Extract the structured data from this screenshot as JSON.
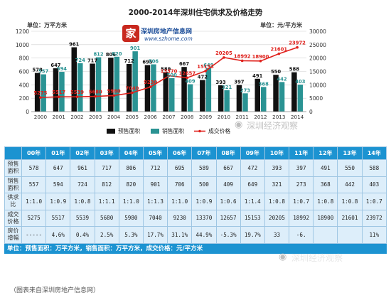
{
  "chart_data": {
    "type": "bar",
    "title": "2000-2014年深圳住宅供求及价格走势",
    "left_axis_label": "单位：万平方米",
    "right_axis_label": "单位：元/平方米",
    "categories": [
      "2000",
      "2001",
      "2002",
      "2003",
      "2004",
      "2005",
      "2006",
      "2007",
      "2008",
      "2009",
      "2010",
      "2011",
      "2012",
      "2013",
      "2014"
    ],
    "ylim_left": [
      0,
      1200
    ],
    "yticks_left": [
      "0",
      "200",
      "400",
      "600",
      "800",
      "1000",
      "1200"
    ],
    "ylim_right": [
      0,
      30000
    ],
    "yticks_right": [
      "0",
      "5000",
      "10000",
      "15000",
      "20000",
      "25000",
      "30000"
    ],
    "series": [
      {
        "name": "预售面积",
        "type": "bar",
        "axis": "left",
        "color": "#111111",
        "values": [
          578,
          647,
          961,
          717,
          806,
          712,
          695,
          589,
          667,
          472,
          393,
          397,
          491,
          550,
          588
        ]
      },
      {
        "name": "销售面积",
        "type": "bar",
        "axis": "left",
        "color": "#2a9393",
        "values": [
          557,
          594,
          724,
          812,
          820,
          901,
          706,
          500,
          409,
          649,
          321,
          273,
          368,
          442,
          403
        ]
      },
      {
        "name": "成交价格",
        "type": "line",
        "axis": "right",
        "color": "#e0201b",
        "values": [
          5275,
          5517,
          5539,
          5680,
          5980,
          7040,
          9230,
          13370,
          12657,
          15153,
          20205,
          18992,
          18900,
          21601,
          23972
        ]
      }
    ],
    "bar_label_sets": [
      [
        "578",
        "647",
        "961",
        "717",
        "806",
        "712",
        "695",
        "589",
        "667",
        "472",
        "393",
        "397",
        "491",
        "550",
        "588"
      ],
      [
        "557",
        "594",
        "724",
        "812",
        "820",
        "901",
        "706",
        "500",
        "409",
        "649",
        "321",
        "273",
        "368",
        "442",
        "403"
      ]
    ],
    "line_labels": [
      "5275",
      "5517",
      "5539",
      "5680",
      "5980",
      "7040",
      "9230",
      "13370",
      "12657",
      "15153",
      "20205",
      "18992",
      "18900",
      "21601",
      "23972"
    ],
    "grid": true,
    "legend_position": "bottom-center"
  },
  "logo": {
    "mark": "家",
    "name": "深圳房地产信息网",
    "url": "www.szhome.com"
  },
  "watermark": {
    "text": "深圳经济观察",
    "icon": "wechat-icon"
  },
  "table": {
    "header": [
      "",
      "00年",
      "01年",
      "02年",
      "03年",
      "04年",
      "05年",
      "06年",
      "07年",
      "08年",
      "09年",
      "10年",
      "11年",
      "12年",
      "13年",
      "14年"
    ],
    "rows": [
      {
        "label": "预售面积",
        "cells": [
          "578",
          "647",
          "961",
          "717",
          "806",
          "712",
          "695",
          "589",
          "667",
          "472",
          "393",
          "397",
          "491",
          "550",
          "588"
        ]
      },
      {
        "label": "销售面积",
        "cells": [
          "557",
          "594",
          "724",
          "812",
          "820",
          "901",
          "706",
          "500",
          "409",
          "649",
          "321",
          "273",
          "368",
          "442",
          "403"
        ]
      },
      {
        "label": "供求比",
        "cells": [
          "1:1.0",
          "1:0.9",
          "1:0.8",
          "1:1.1",
          "1:1.0",
          "1:1.3",
          "1:1.0",
          "1:0.9",
          "1:0.6",
          "1:1.4",
          "1:0.8",
          "1:0.7",
          "1:0.8",
          "1:0.8",
          "1:0.7"
        ]
      },
      {
        "label": "成交价格",
        "cells": [
          "5275",
          "5517",
          "5539",
          "5680",
          "5980",
          "7040",
          "9230",
          "13370",
          "12657",
          "15153",
          "20205",
          "18992",
          "18900",
          "21601",
          "23972"
        ]
      },
      {
        "label": "房价增幅",
        "cells": [
          "-----",
          "4.6%",
          "0.4%",
          "2.5%",
          "5.3%",
          "17.7%",
          "31.1%",
          "44.9%",
          "-5.3%",
          "19.7%",
          "33",
          "-6.",
          "",
          "",
          "11%"
        ]
      }
    ],
    "unit_note": "单位：预售面积：万平方米，销售面积：万平方米，成交价格：元/平方米"
  },
  "source_note": "（图表来自深圳房地产信息网）"
}
